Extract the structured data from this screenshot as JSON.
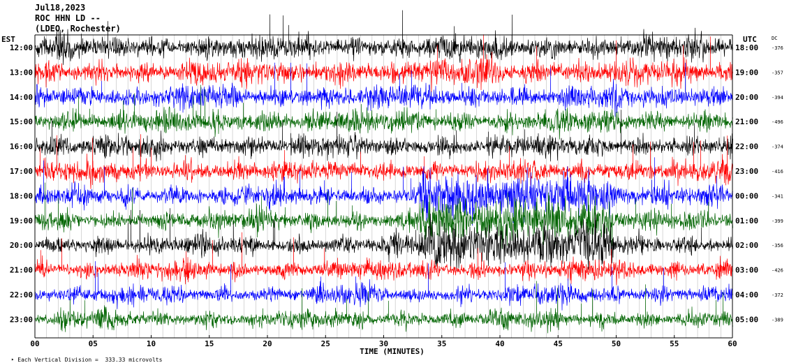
{
  "header": {
    "line1": "Jul18,2023",
    "line2": "ROC HHN LD --",
    "line3": "(LDEO, Rochester)"
  },
  "chart_data": {
    "type": "line",
    "title": "",
    "left_axis_label": "EST",
    "right_axis_label": "UTC",
    "dc_label": "DC",
    "xlabel": "TIME (MINUTES)",
    "x_ticks": [
      "00",
      "05",
      "10",
      "15",
      "20",
      "25",
      "30",
      "35",
      "40",
      "45",
      "50",
      "55",
      "60"
    ],
    "xlim": [
      0,
      60
    ],
    "left_hours": [
      "12:00",
      "13:00",
      "14:00",
      "15:00",
      "16:00",
      "17:00",
      "18:00",
      "19:00",
      "20:00",
      "21:00",
      "22:00",
      "23:00"
    ],
    "right_hours": [
      "18:00",
      "19:00",
      "20:00",
      "21:00",
      "22:00",
      "23:00",
      "00:00",
      "01:00",
      "02:00",
      "03:00",
      "04:00",
      "05:00"
    ],
    "dc_offsets": [
      "-376",
      "-357",
      "-394",
      "-496",
      "-374",
      "-416",
      "-341",
      "-399",
      "-356",
      "-426",
      "-372",
      "-389"
    ],
    "trace_colors": [
      "#000000",
      "#ff0000",
      "#0000ff",
      "#006400"
    ],
    "grid": true,
    "footnote": "Each Vertical Division =  333.33 microvolts"
  }
}
